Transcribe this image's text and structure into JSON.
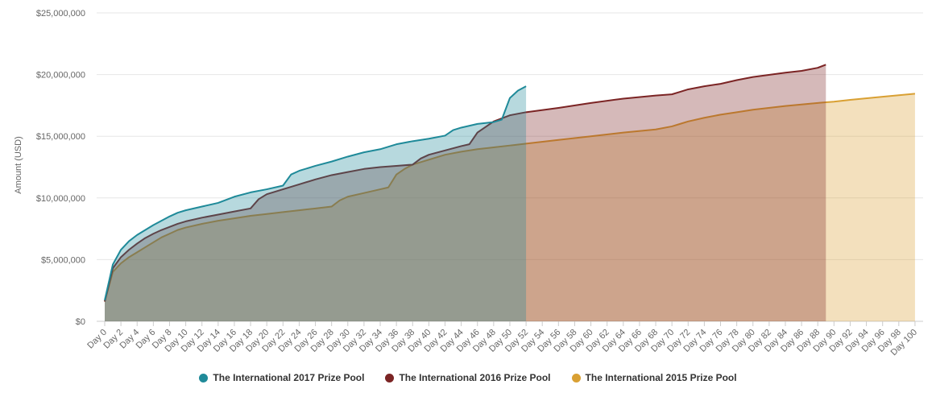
{
  "chart_data": {
    "type": "area",
    "title": "",
    "ylabel": "Amount (USD)",
    "xlabel": "",
    "ylim": [
      0,
      25000000
    ],
    "yticks": [
      0,
      5000000,
      10000000,
      15000000,
      20000000,
      25000000
    ],
    "ytick_labels": [
      "$0",
      "$5,000,000",
      "$10,000,000",
      "$15,000,000",
      "$20,000,000",
      "$25,000,000"
    ],
    "xlim": [
      0,
      101
    ],
    "xtick_prefix": "Day ",
    "xtick_step": 2,
    "xtick_max": 100,
    "grid": true,
    "legend_position": "bottom",
    "series": [
      {
        "name": "The International 2015 Prize Pool",
        "color": "#d9a033",
        "x": [
          0,
          1,
          2,
          3,
          4,
          5,
          6,
          7,
          8,
          9,
          10,
          12,
          14,
          16,
          18,
          20,
          22,
          24,
          26,
          28,
          29,
          30,
          32,
          34,
          35,
          36,
          37,
          38,
          40,
          42,
          44,
          46,
          48,
          50,
          52,
          56,
          60,
          64,
          68,
          70,
          71,
          72,
          74,
          76,
          78,
          80,
          84,
          88,
          90,
          92,
          96,
          100
        ],
        "values": [
          1600000,
          4000000,
          4700000,
          5200000,
          5600000,
          6000000,
          6400000,
          6800000,
          7100000,
          7400000,
          7600000,
          7900000,
          8150000,
          8350000,
          8550000,
          8700000,
          8850000,
          9000000,
          9150000,
          9300000,
          9800000,
          10100000,
          10400000,
          10700000,
          10850000,
          11900000,
          12350000,
          12700000,
          13100000,
          13500000,
          13750000,
          13950000,
          14100000,
          14250000,
          14400000,
          14700000,
          15000000,
          15300000,
          15550000,
          15800000,
          16000000,
          16200000,
          16500000,
          16750000,
          16950000,
          17150000,
          17450000,
          17700000,
          17800000,
          17950000,
          18200000,
          18450000
        ]
      },
      {
        "name": "The International 2016 Prize Pool",
        "color": "#7b2424",
        "x": [
          0,
          1,
          2,
          3,
          4,
          5,
          6,
          7,
          8,
          9,
          10,
          12,
          14,
          16,
          18,
          19,
          20,
          22,
          24,
          26,
          28,
          30,
          32,
          34,
          36,
          38,
          39,
          40,
          42,
          44,
          45,
          46,
          48,
          50,
          52,
          56,
          60,
          64,
          68,
          70,
          71,
          72,
          74,
          76,
          78,
          80,
          84,
          86,
          88,
          89
        ],
        "values": [
          1600000,
          4300000,
          5200000,
          5800000,
          6300000,
          6750000,
          7100000,
          7400000,
          7650000,
          7900000,
          8100000,
          8400000,
          8650000,
          8900000,
          9150000,
          9900000,
          10300000,
          10700000,
          11100000,
          11500000,
          11850000,
          12100000,
          12350000,
          12500000,
          12600000,
          12700000,
          13200000,
          13500000,
          13850000,
          14200000,
          14350000,
          15300000,
          16200000,
          16700000,
          16950000,
          17300000,
          17700000,
          18050000,
          18300000,
          18400000,
          18600000,
          18800000,
          19050000,
          19250000,
          19550000,
          19800000,
          20150000,
          20300000,
          20550000,
          20800000
        ]
      },
      {
        "name": "The International 2017 Prize Pool",
        "color": "#1f8a99",
        "x": [
          0,
          1,
          2,
          3,
          4,
          5,
          6,
          7,
          8,
          9,
          10,
          12,
          14,
          16,
          18,
          20,
          22,
          23,
          24,
          26,
          28,
          30,
          32,
          34,
          36,
          38,
          40,
          42,
          43,
          44,
          46,
          48,
          49,
          50,
          51,
          52
        ],
        "values": [
          1700000,
          4600000,
          5800000,
          6500000,
          7000000,
          7400000,
          7800000,
          8150000,
          8500000,
          8800000,
          9000000,
          9300000,
          9600000,
          10100000,
          10450000,
          10700000,
          11000000,
          11900000,
          12200000,
          12600000,
          12950000,
          13350000,
          13700000,
          13950000,
          14350000,
          14600000,
          14800000,
          15050000,
          15500000,
          15700000,
          16000000,
          16150000,
          16350000,
          18100000,
          18700000,
          19050000
        ]
      }
    ]
  }
}
